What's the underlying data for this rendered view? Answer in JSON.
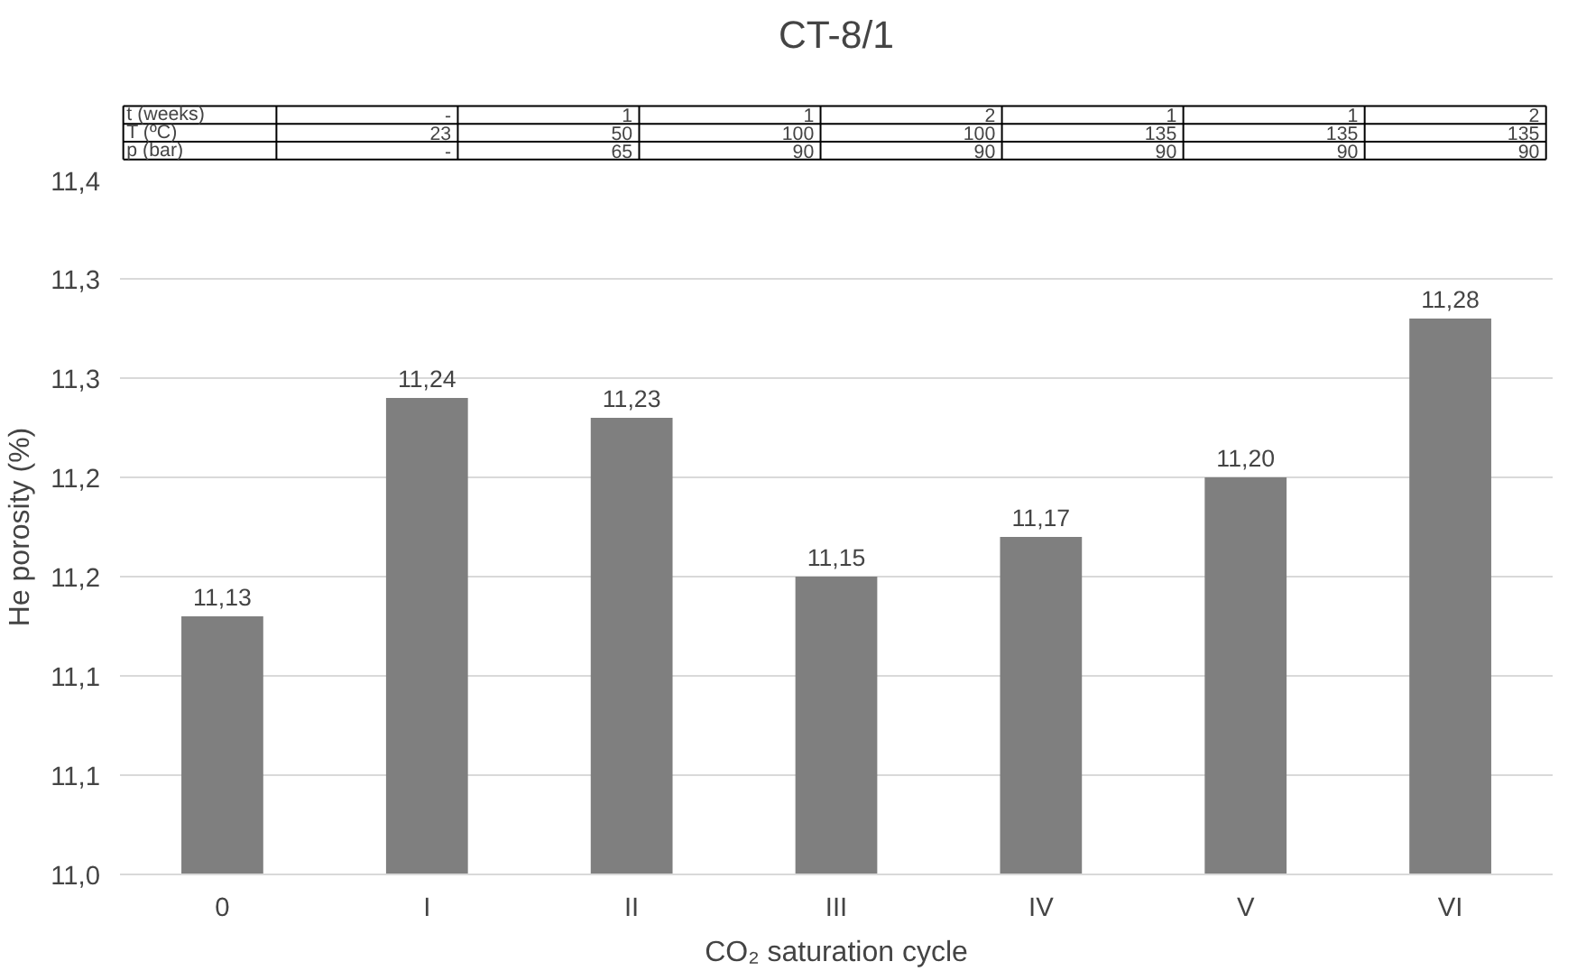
{
  "chart_data": {
    "type": "bar",
    "title": "CT-8/1",
    "categories": [
      "0",
      "I",
      "II",
      "III",
      "IV",
      "V",
      "VI"
    ],
    "values": [
      11.13,
      11.24,
      11.23,
      11.15,
      11.17,
      11.2,
      11.28
    ],
    "value_labels": [
      "11,13",
      "11,24",
      "11,23",
      "11,15",
      "11,17",
      "11,20",
      "11,28"
    ],
    "color": "#7f7f7f",
    "xlabel": "CO₂ saturation cycle",
    "ylabel": "He porosity (%)",
    "ylim": [
      11.0,
      11.35
    ],
    "yticks": [
      {
        "value": 11.0,
        "label": "11,0"
      },
      {
        "value": 11.05,
        "label": "11,1"
      },
      {
        "value": 11.1,
        "label": "11,1"
      },
      {
        "value": 11.15,
        "label": "11,2"
      },
      {
        "value": 11.2,
        "label": "11,2"
      },
      {
        "value": 11.25,
        "label": "11,3"
      },
      {
        "value": 11.3,
        "label": "11,3"
      },
      {
        "value": 11.35,
        "label": "11,4"
      }
    ],
    "grid": "y",
    "annotations": [
      "t (weeks)",
      "-",
      "1",
      "1",
      "2",
      "1",
      "1",
      "2",
      "T (ºC)",
      "23",
      "50",
      "100",
      "100",
      "135",
      "135",
      "135",
      "p (bar)",
      "-",
      "65",
      "90",
      "90",
      "90",
      "90",
      "90"
    ]
  }
}
